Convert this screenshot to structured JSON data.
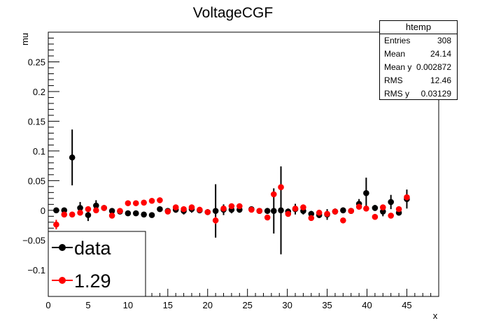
{
  "chart_data": {
    "type": "scatter",
    "title": "VoltageCGF",
    "xlabel": "x",
    "ylabel": "mu",
    "xlim": [
      0,
      49
    ],
    "ylim": [
      -0.145,
      0.3
    ],
    "xticks": [
      "0",
      "5",
      "10",
      "15",
      "20",
      "25",
      "30",
      "35",
      "40",
      "45"
    ],
    "yticks": [
      "−0.1",
      "−0.05",
      "0",
      "0.05",
      "0.1",
      "0.15",
      "0.2",
      "0.25"
    ],
    "legend": {
      "position": "bottom-left",
      "entries": [
        "data",
        "1.29"
      ]
    },
    "stats": {
      "title": "htemp",
      "rows": [
        {
          "label": "Entries",
          "value": "308"
        },
        {
          "label": "Mean",
          "value": "24.14"
        },
        {
          "label": "Mean y",
          "value": "0.002872"
        },
        {
          "label": "RMS",
          "value": "12.46"
        },
        {
          "label": "RMS y",
          "value": "0.03129"
        }
      ]
    },
    "series": [
      {
        "name": "data",
        "color": "#000000",
        "points": [
          {
            "x": 1,
            "y": 0.0,
            "err": 0.004
          },
          {
            "x": 2,
            "y": 0.0,
            "err": 0.004
          },
          {
            "x": 3,
            "y": 0.089,
            "err": 0.047
          },
          {
            "x": 4,
            "y": 0.004,
            "err": 0.01
          },
          {
            "x": 5,
            "y": -0.008,
            "err": 0.01
          },
          {
            "x": 6,
            "y": 0.008,
            "err": 0.009
          },
          {
            "x": 7,
            "y": 0.004,
            "err": 0.004
          },
          {
            "x": 8,
            "y": -0.001,
            "err": 0.004
          },
          {
            "x": 9,
            "y": -0.002,
            "err": 0.003
          },
          {
            "x": 10,
            "y": -0.005,
            "err": 0.003
          },
          {
            "x": 11,
            "y": -0.005,
            "err": 0.003
          },
          {
            "x": 12,
            "y": -0.007,
            "err": 0.003
          },
          {
            "x": 13,
            "y": -0.008,
            "err": 0.003
          },
          {
            "x": 14,
            "y": 0.002,
            "err": 0.003
          },
          {
            "x": 15,
            "y": -0.001,
            "err": 0.004
          },
          {
            "x": 16,
            "y": 0.001,
            "err": 0.005
          },
          {
            "x": 17,
            "y": -0.001,
            "err": 0.006
          },
          {
            "x": 18,
            "y": 0.002,
            "err": 0.006
          },
          {
            "x": 19,
            "y": 0.0,
            "err": 0.005
          },
          {
            "x": 20,
            "y": -0.003,
            "err": 0.005
          },
          {
            "x": 21,
            "y": -0.001,
            "err": 0.045
          },
          {
            "x": 22,
            "y": 0.001,
            "err": 0.009
          },
          {
            "x": 23,
            "y": 0.001,
            "err": 0.006
          },
          {
            "x": 24,
            "y": 0.001,
            "err": 0.005
          },
          {
            "x": 25.5,
            "y": 0.002,
            "err": 0.004
          },
          {
            "x": 26.5,
            "y": -0.001,
            "err": 0.004
          },
          {
            "x": 27.5,
            "y": -0.001,
            "err": 0.005
          },
          {
            "x": 28.3,
            "y": -0.001,
            "err": 0.038
          },
          {
            "x": 29.2,
            "y": 0.0,
            "err": 0.074
          },
          {
            "x": 30.1,
            "y": -0.002,
            "err": 0.005
          },
          {
            "x": 31,
            "y": 0.002,
            "err": 0.009
          },
          {
            "x": 32,
            "y": -0.001,
            "err": 0.006
          },
          {
            "x": 33,
            "y": -0.006,
            "err": 0.005
          },
          {
            "x": 34,
            "y": -0.008,
            "err": 0.005
          },
          {
            "x": 35,
            "y": -0.007,
            "err": 0.009
          },
          {
            "x": 36,
            "y": -0.002,
            "err": 0.005
          },
          {
            "x": 37,
            "y": 0.0,
            "err": 0.005
          },
          {
            "x": 38,
            "y": -0.001,
            "err": 0.005
          },
          {
            "x": 39,
            "y": 0.011,
            "err": 0.008
          },
          {
            "x": 39.9,
            "y": 0.029,
            "err": 0.026
          },
          {
            "x": 41,
            "y": 0.004,
            "err": 0.005
          },
          {
            "x": 42,
            "y": -0.002,
            "err": 0.008
          },
          {
            "x": 43,
            "y": 0.014,
            "err": 0.012
          },
          {
            "x": 44,
            "y": -0.004,
            "err": 0.005
          },
          {
            "x": 45,
            "y": 0.019,
            "err": 0.016
          }
        ]
      },
      {
        "name": "1.29",
        "color": "#ff0000",
        "points": [
          {
            "x": 1,
            "y": -0.024,
            "err": 0.008
          },
          {
            "x": 2,
            "y": -0.007,
            "err": 0.003
          },
          {
            "x": 3,
            "y": -0.007,
            "err": 0.003
          },
          {
            "x": 4,
            "y": -0.004,
            "err": 0.003
          },
          {
            "x": 5,
            "y": 0.002,
            "err": 0.003
          },
          {
            "x": 6,
            "y": 0.0,
            "err": 0.003
          },
          {
            "x": 7,
            "y": 0.004,
            "err": 0.003
          },
          {
            "x": 8,
            "y": -0.009,
            "err": 0.004
          },
          {
            "x": 9,
            "y": -0.001,
            "err": 0.003
          },
          {
            "x": 10,
            "y": 0.012,
            "err": 0.003
          },
          {
            "x": 11,
            "y": 0.012,
            "err": 0.003
          },
          {
            "x": 12,
            "y": 0.013,
            "err": 0.003
          },
          {
            "x": 13,
            "y": 0.016,
            "err": 0.004
          },
          {
            "x": 14,
            "y": 0.017,
            "err": 0.004
          },
          {
            "x": 15,
            "y": -0.002,
            "err": 0.003
          },
          {
            "x": 16,
            "y": 0.005,
            "err": 0.003
          },
          {
            "x": 17,
            "y": 0.002,
            "err": 0.003
          },
          {
            "x": 18,
            "y": 0.005,
            "err": 0.003
          },
          {
            "x": 19,
            "y": 0.001,
            "err": 0.003
          },
          {
            "x": 20,
            "y": -0.003,
            "err": 0.003
          },
          {
            "x": 21,
            "y": -0.017,
            "err": 0.006
          },
          {
            "x": 22,
            "y": 0.003,
            "err": 0.003
          },
          {
            "x": 23,
            "y": 0.007,
            "err": 0.003
          },
          {
            "x": 24,
            "y": 0.007,
            "err": 0.003
          },
          {
            "x": 25.5,
            "y": 0.001,
            "err": 0.003
          },
          {
            "x": 26.5,
            "y": -0.001,
            "err": 0.003
          },
          {
            "x": 27.5,
            "y": -0.012,
            "err": 0.003
          },
          {
            "x": 28.3,
            "y": 0.027,
            "err": 0.004
          },
          {
            "x": 29.2,
            "y": 0.039,
            "err": 0.004
          },
          {
            "x": 30.1,
            "y": -0.006,
            "err": 0.003
          },
          {
            "x": 31,
            "y": 0.003,
            "err": 0.003
          },
          {
            "x": 32,
            "y": 0.005,
            "err": 0.003
          },
          {
            "x": 33,
            "y": -0.013,
            "err": 0.003
          },
          {
            "x": 34,
            "y": -0.004,
            "err": 0.003
          },
          {
            "x": 35,
            "y": -0.006,
            "err": 0.003
          },
          {
            "x": 36,
            "y": -0.002,
            "err": 0.003
          },
          {
            "x": 37,
            "y": -0.017,
            "err": 0.004
          },
          {
            "x": 38,
            "y": -0.001,
            "err": 0.003
          },
          {
            "x": 39,
            "y": 0.006,
            "err": 0.003
          },
          {
            "x": 39.9,
            "y": 0.003,
            "err": 0.003
          },
          {
            "x": 41,
            "y": -0.011,
            "err": 0.003
          },
          {
            "x": 42,
            "y": 0.005,
            "err": 0.003
          },
          {
            "x": 43,
            "y": -0.009,
            "err": 0.003
          },
          {
            "x": 44,
            "y": 0.002,
            "err": 0.003
          },
          {
            "x": 45,
            "y": 0.022,
            "err": 0.003
          }
        ]
      }
    ]
  }
}
